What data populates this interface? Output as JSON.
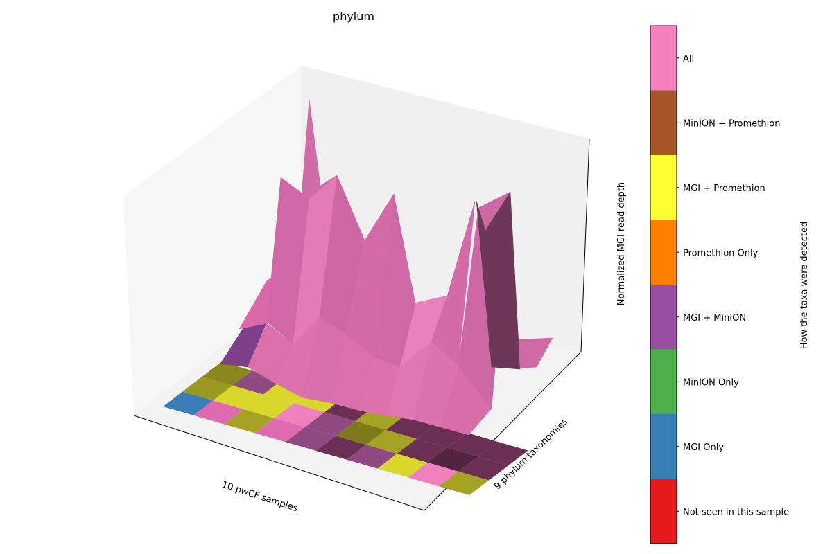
{
  "chart_data": {
    "type": "surface3d",
    "title": "phylum",
    "xlabel": "10 pwCF samples",
    "ylabel": "9 phylum taxonomies",
    "zlabel": "Normalized MGI read depth",
    "colorbar": {
      "label": "How the taxa were detected",
      "categories": [
        {
          "name": "Not seen in this sample",
          "color": "#e41a1c"
        },
        {
          "name": "MGI Only",
          "color": "#377eb8"
        },
        {
          "name": "MinION Only",
          "color": "#4daf4a"
        },
        {
          "name": "MGI + MinION",
          "color": "#984ea3"
        },
        {
          "name": "Promethion Only",
          "color": "#ff7f00"
        },
        {
          "name": "MGI + Promethion",
          "color": "#ffff33"
        },
        {
          "name": "MinION + Promethion",
          "color": "#a65628"
        },
        {
          "name": "All",
          "color": "#f781bf"
        }
      ]
    },
    "grid": true
  }
}
